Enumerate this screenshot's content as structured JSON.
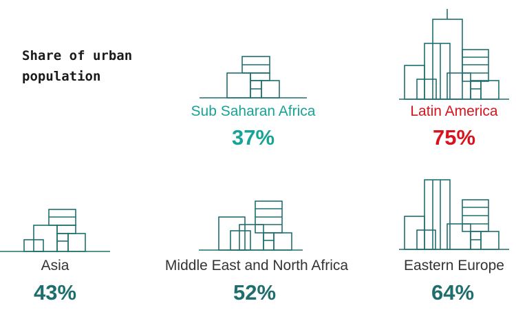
{
  "title": "Share of urban population",
  "colors": {
    "highlight_low": "#17a396",
    "highlight_high": "#d7141e",
    "default": "#1f6e6e",
    "label": "#333333"
  },
  "chart_data": {
    "type": "table",
    "title": "Share of urban population",
    "categories": [
      "Sub Saharan Africa",
      "Latin America",
      "Asia",
      "Middle East and North Africa",
      "Eastern Europe"
    ],
    "values": [
      37,
      75,
      43,
      52,
      64
    ],
    "value_labels": [
      "37%",
      "75%",
      "43%",
      "52%",
      "64%"
    ],
    "unit": "%"
  }
}
